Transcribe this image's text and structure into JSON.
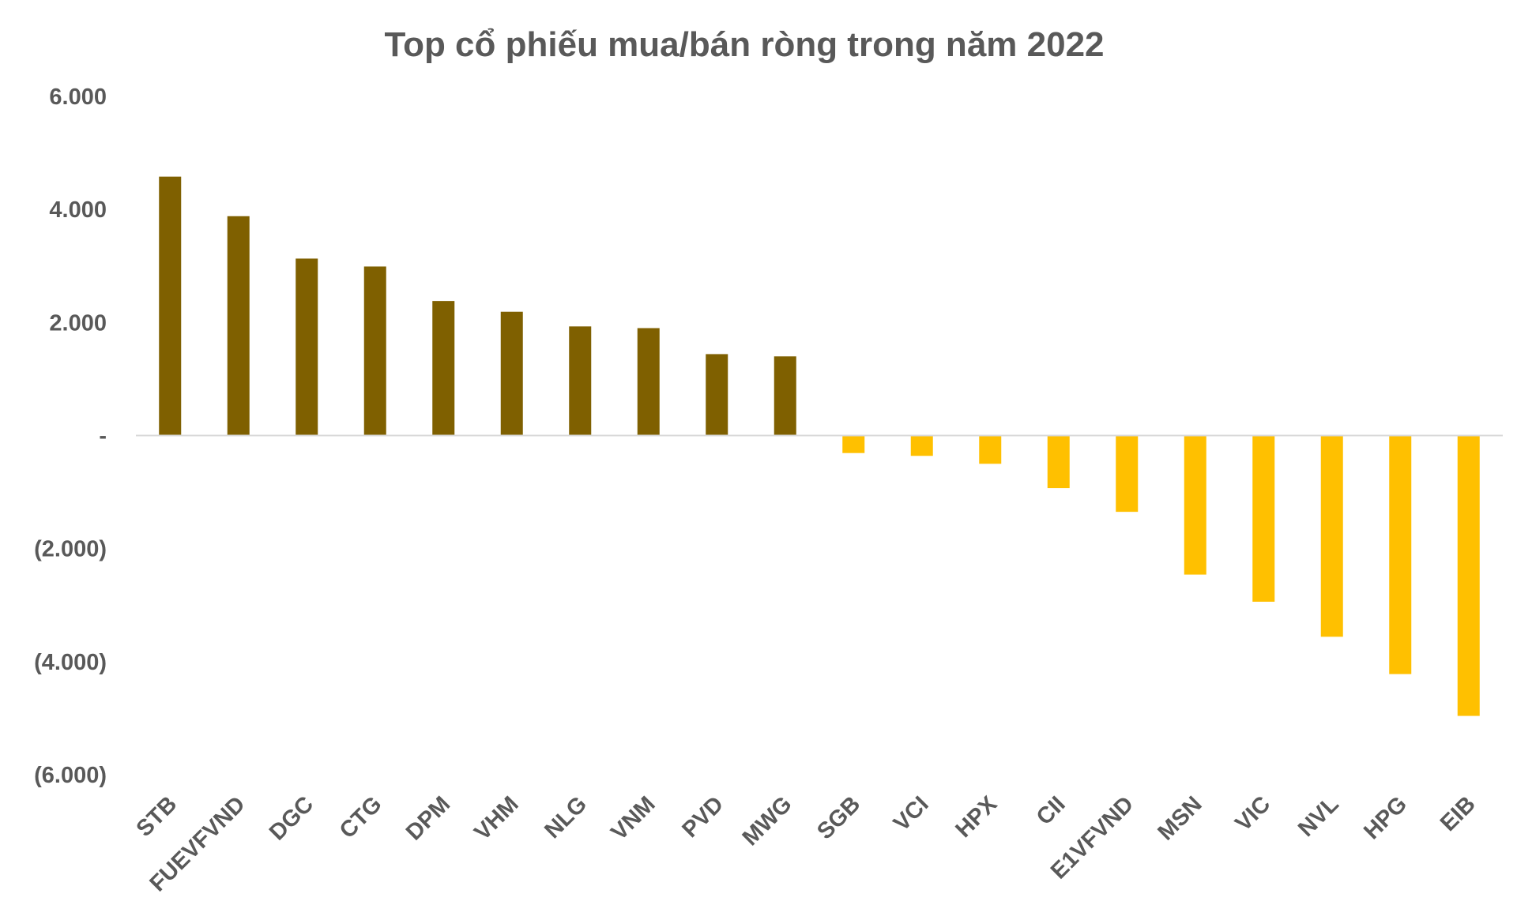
{
  "chart_data": {
    "type": "bar",
    "title": "Top cổ phiếu mua/bán ròng trong năm 2022",
    "categories": [
      "STB",
      "FUEVFVND",
      "DGC",
      "CTG",
      "DPM",
      "VHM",
      "NLG",
      "VNM",
      "PVD",
      "MWG",
      "SGB",
      "VCI",
      "HPX",
      "CII",
      "E1VFVND",
      "MSN",
      "VIC",
      "NVL",
      "HPG",
      "EIB"
    ],
    "values": [
      4580,
      3880,
      3130,
      2990,
      2380,
      2190,
      1930,
      1900,
      1440,
      1400,
      -310,
      -360,
      -500,
      -930,
      -1350,
      -2460,
      -2940,
      -3560,
      -4220,
      -4960
    ],
    "ylim": [
      -6000,
      6000
    ],
    "yticks": [
      6000,
      4000,
      2000,
      0,
      -2000,
      -4000,
      -6000
    ],
    "ytick_labels": [
      "6.000",
      "4.000",
      "2.000",
      "-",
      "(2.000)",
      "(4.000)",
      "(6.000)"
    ],
    "grid": false,
    "colors": {
      "positive": "#7F6000",
      "negative": "#FFC000",
      "axis": "#D9D9D9",
      "text": "#595959"
    }
  }
}
